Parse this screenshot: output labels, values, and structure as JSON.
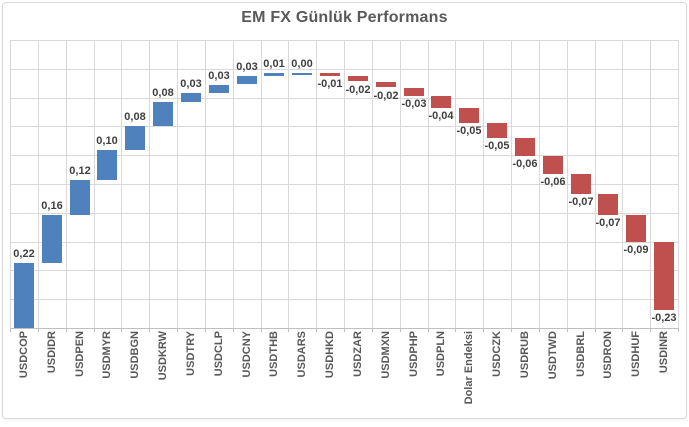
{
  "chart_data": {
    "type": "bar",
    "subtype": "waterfall",
    "title": "EM FX Günlük Performans",
    "categories": [
      "USDCOP",
      "USDIDR",
      "USDPEN",
      "USDMYR",
      "USDBGN",
      "USDKRW",
      "USDTRY",
      "USDCLP",
      "USDCNY",
      "USDTHB",
      "USDARS",
      "USDHKD",
      "USDZAR",
      "USDMXN",
      "USDPHP",
      "USDPLN",
      "Dolar Endeksi",
      "USDCZK",
      "USDRUB",
      "USDTWD",
      "USDBRL",
      "USDRON",
      "USDHUF",
      "USDINR"
    ],
    "values": [
      0.22,
      0.16,
      0.12,
      0.1,
      0.08,
      0.08,
      0.03,
      0.03,
      0.03,
      0.01,
      0.0,
      -0.01,
      -0.02,
      -0.02,
      -0.03,
      -0.04,
      -0.05,
      -0.05,
      -0.06,
      -0.06,
      -0.07,
      -0.07,
      -0.09,
      -0.23
    ],
    "value_labels": [
      "0,22",
      "0,16",
      "0,12",
      "0,10",
      "0,08",
      "0,08",
      "0,03",
      "0,03",
      "0,03",
      "0,01",
      "0,00",
      "-0,01",
      "-0,02",
      "-0,02",
      "-0,03",
      "-0,04",
      "-0,05",
      "-0,05",
      "-0,06",
      "-0,06",
      "-0,07",
      "-0,07",
      "-0,09",
      "-0,23"
    ],
    "xlabel": "",
    "ylabel": "",
    "ylim": [
      0,
      0.97
    ],
    "y_gridline_intervals": 10,
    "grid": true,
    "legend": "none",
    "x_label_rotation_deg": 90,
    "colors": {
      "positive_bar": "#4F81BD",
      "negative_bar": "#C0504D",
      "title_text": "#595959",
      "axis_label_text": "#595959",
      "data_label_text": "#404040",
      "gridline": "#D9D9D9",
      "axis_line": "#BFBFBF",
      "chart_border": "#D9D9D9",
      "background": "#FFFFFF"
    }
  }
}
